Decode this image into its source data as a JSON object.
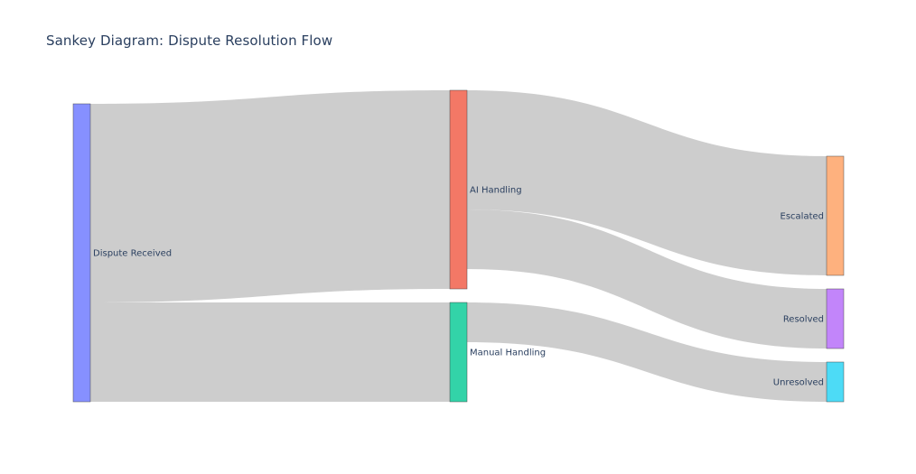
{
  "chart": {
    "title": "Sankey Diagram: Dispute Resolution Flow"
  },
  "chart_data": {
    "type": "sankey",
    "nodes": [
      {
        "name": "Dispute Received",
        "color": "#8690ff"
      },
      {
        "name": "AI Handling",
        "color": "#f37866"
      },
      {
        "name": "Manual Handling",
        "color": "#33d3a8"
      },
      {
        "name": "Escalated",
        "color": "#feb17e"
      },
      {
        "name": "Resolved",
        "color": "#c285fa"
      },
      {
        "name": "Unresolved",
        "color": "#4ddbf6"
      }
    ],
    "links": [
      {
        "source": "Dispute Received",
        "target": "AI Handling",
        "value": 200
      },
      {
        "source": "Dispute Received",
        "target": "Manual Handling",
        "value": 100
      },
      {
        "source": "AI Handling",
        "target": "Escalated",
        "value": 120
      },
      {
        "source": "AI Handling",
        "target": "Resolved",
        "value": 60
      },
      {
        "source": "Manual Handling",
        "target": "Unresolved",
        "value": 40
      },
      {
        "source": "Manual Handling",
        "target": "Resolved",
        "value": 0
      }
    ]
  }
}
